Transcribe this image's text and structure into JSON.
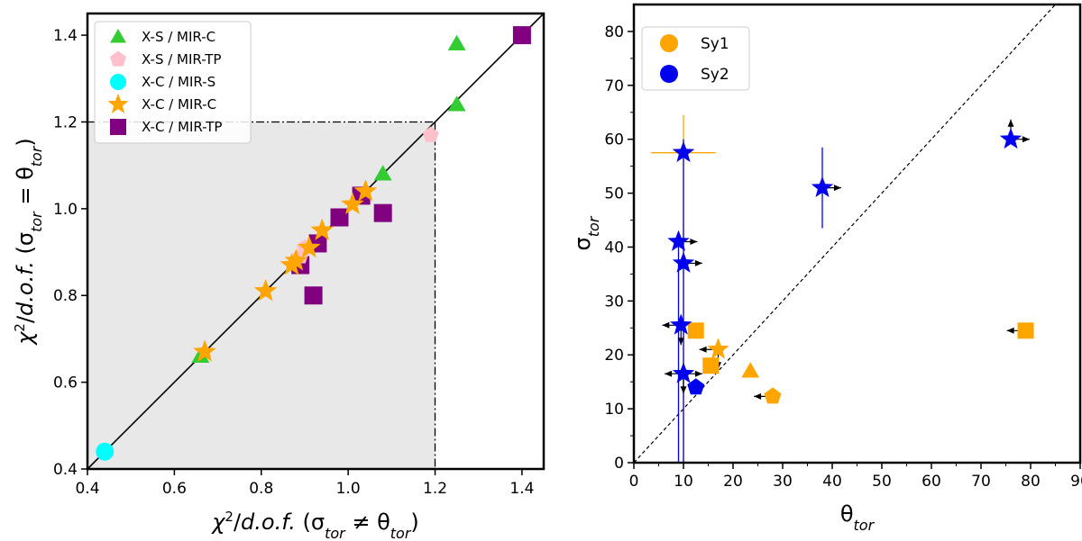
{
  "chart_data": [
    {
      "type": "scatter",
      "title": "",
      "xlabel": "χ²/d.o.f. (σ_tor ≠ θ_tor)",
      "ylabel": "χ²/d.o.f. (σ_tor = θ_tor)",
      "xlabel_parts": [
        "χ",
        "2",
        "/",
        "d.o.f.",
        " (σ",
        "tor",
        " ≠ θ",
        "tor",
        ")"
      ],
      "ylabel_parts": [
        "χ",
        "2",
        "/",
        "d.o.f.",
        " (σ",
        "tor",
        " = θ",
        "tor",
        ")"
      ],
      "xlim": [
        0.4,
        1.45
      ],
      "ylim": [
        0.4,
        1.45
      ],
      "xticks": [
        0.4,
        0.6,
        0.8,
        1.0,
        1.2,
        1.4
      ],
      "yticks": [
        0.4,
        0.6,
        0.8,
        1.0,
        1.2,
        1.4
      ],
      "xtick_labels": [
        "0.4",
        "0.6",
        "0.8",
        "1.0",
        "1.2",
        "1.4"
      ],
      "ytick_labels": [
        "0.4",
        "0.6",
        "0.8",
        "1.0",
        "1.2",
        "1.4"
      ],
      "identity_line": true,
      "shaded_region": {
        "x": [
          0.4,
          1.2
        ],
        "y": [
          0.4,
          1.2
        ],
        "color": "#e8e8e8"
      },
      "threshold": 1.2,
      "legend_position": "top-left",
      "series": [
        {
          "name": "X-S / MIR-C",
          "marker": "triangle",
          "color": "#33cc33",
          "points": [
            [
              1.25,
              1.38
            ],
            [
              1.25,
              1.24
            ],
            [
              1.08,
              1.08
            ],
            [
              0.66,
              0.66
            ]
          ]
        },
        {
          "name": "X-S / MIR-TP",
          "marker": "pentagon",
          "color": "#ffc0cb",
          "points": [
            [
              1.19,
              1.17
            ],
            [
              0.89,
              0.89
            ],
            [
              0.9,
              0.91
            ]
          ]
        },
        {
          "name": "X-C / MIR-S",
          "marker": "circle",
          "color": "#00ffff",
          "points": [
            [
              0.44,
              0.44
            ]
          ]
        },
        {
          "name": "X-C / MIR-C",
          "marker": "star",
          "color": "#ffa500",
          "points": [
            [
              0.67,
              0.67
            ],
            [
              0.81,
              0.81
            ],
            [
              0.87,
              0.87
            ],
            [
              0.88,
              0.88
            ],
            [
              0.91,
              0.91
            ],
            [
              0.94,
              0.95
            ],
            [
              1.01,
              1.01
            ],
            [
              1.04,
              1.04
            ]
          ]
        },
        {
          "name": "X-C / MIR-TP",
          "marker": "square",
          "color": "#800080",
          "points": [
            [
              1.4,
              1.4
            ],
            [
              1.08,
              0.99
            ],
            [
              0.92,
              0.8
            ],
            [
              0.98,
              0.98
            ],
            [
              1.03,
              1.03
            ],
            [
              0.93,
              0.92
            ],
            [
              0.89,
              0.87
            ]
          ]
        }
      ]
    },
    {
      "type": "scatter",
      "title": "",
      "xlabel": "θ_tor",
      "ylabel": "σ_tor",
      "xlabel_parts": [
        "θ",
        "tor"
      ],
      "ylabel_parts": [
        "σ",
        "tor"
      ],
      "xlim": [
        0,
        90
      ],
      "ylim": [
        0,
        85
      ],
      "xticks": [
        0,
        10,
        20,
        30,
        40,
        50,
        60,
        70,
        80,
        90
      ],
      "yticks": [
        0,
        10,
        20,
        30,
        40,
        50,
        60,
        70,
        80
      ],
      "xtick_labels": [
        "0",
        "10",
        "20",
        "30",
        "40",
        "50",
        "60",
        "70",
        "80",
        "90"
      ],
      "ytick_labels": [
        "0",
        "10",
        "20",
        "30",
        "40",
        "50",
        "60",
        "70",
        "80"
      ],
      "identity_line": true,
      "legend_position": "top-left",
      "legend": [
        {
          "name": "Sy1",
          "color": "#ffa500"
        },
        {
          "name": "Sy2",
          "color": "#0000ee"
        }
      ],
      "points": [
        {
          "group": "Sy1",
          "marker": "star",
          "x": 10,
          "y": 57.5,
          "xerr": 6.5,
          "yerr": [
            57.5,
            7
          ]
        },
        {
          "group": "Sy1",
          "marker": "square",
          "x": 12.5,
          "y": 24.5
        },
        {
          "group": "Sy1",
          "marker": "star",
          "x": 17,
          "y": 21,
          "limits": [
            "left",
            "down"
          ]
        },
        {
          "group": "Sy1",
          "marker": "square",
          "x": 15.5,
          "y": 18
        },
        {
          "group": "Sy1",
          "marker": "triangle",
          "x": 23.5,
          "y": 17
        },
        {
          "group": "Sy1",
          "marker": "pentagon",
          "x": 28,
          "y": 12.3,
          "limits": [
            "left"
          ]
        },
        {
          "group": "Sy1",
          "marker": "square",
          "x": 79,
          "y": 24.5,
          "limits": [
            "left"
          ]
        },
        {
          "group": "Sy2",
          "marker": "star",
          "x": 10,
          "y": 57.5,
          "yerr": [
            57.5,
            2.5
          ]
        },
        {
          "group": "Sy2",
          "marker": "star",
          "x": 9,
          "y": 41,
          "yerr": [
            41,
            0
          ],
          "limits": [
            "right"
          ]
        },
        {
          "group": "Sy2",
          "marker": "star",
          "x": 10,
          "y": 37,
          "limits": [
            "right"
          ]
        },
        {
          "group": "Sy2",
          "marker": "star",
          "x": 9.5,
          "y": 25.5,
          "limits": [
            "left",
            "down"
          ]
        },
        {
          "group": "Sy2",
          "marker": "star",
          "x": 10,
          "y": 16.5,
          "limits": [
            "left",
            "right",
            "down"
          ]
        },
        {
          "group": "Sy2",
          "marker": "pentagon",
          "x": 12.5,
          "y": 14
        },
        {
          "group": "Sy2",
          "marker": "star",
          "x": 38,
          "y": 51,
          "yerr": [
            7.5,
            7.5
          ],
          "limits": [
            "right"
          ]
        },
        {
          "group": "Sy2",
          "marker": "star",
          "x": 76,
          "y": 60,
          "limits": [
            "right",
            "up"
          ]
        }
      ]
    }
  ]
}
